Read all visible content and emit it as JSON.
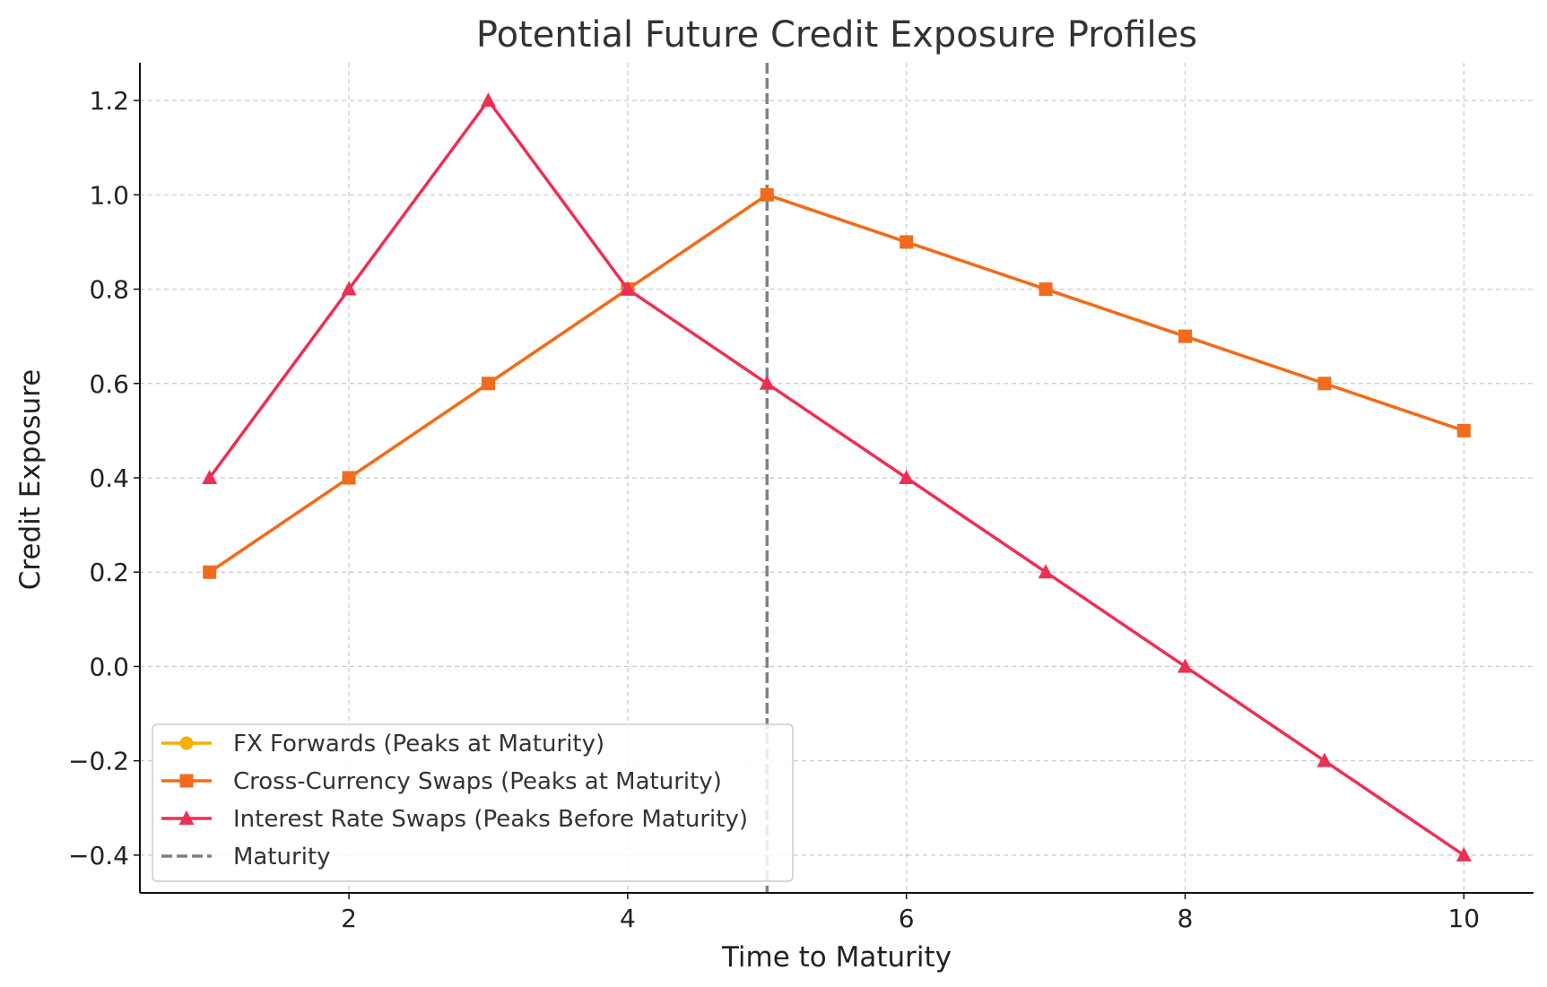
{
  "chart_data": {
    "type": "line",
    "title": "Potential Future Credit Exposure Profiles",
    "xlabel": "Time to Maturity",
    "ylabel": "Credit Exposure",
    "xlim": [
      0.5,
      10.5
    ],
    "ylim": [
      -0.48,
      1.28
    ],
    "xticks": [
      2,
      4,
      6,
      8,
      10
    ],
    "xtick_labels": [
      "2",
      "4",
      "6",
      "8",
      "10"
    ],
    "yticks": [
      -0.4,
      -0.2,
      0.0,
      0.2,
      0.4,
      0.6,
      0.8,
      1.0,
      1.2
    ],
    "ytick_labels": [
      "−0.4",
      "−0.2",
      "0.0",
      "0.2",
      "0.4",
      "0.6",
      "0.8",
      "1.0",
      "1.2"
    ],
    "grid": true,
    "legend_position": "bottom-left",
    "x": [
      1,
      2,
      3,
      4,
      5,
      6,
      7,
      8,
      9,
      10
    ],
    "series": [
      {
        "name": "FX Forwards (Peaks at Maturity)",
        "marker": "circle",
        "color": "#f5b000",
        "values": [
          0.2,
          0.4,
          0.6,
          0.8,
          1.0,
          0.9,
          0.8,
          0.7,
          0.6,
          0.5
        ]
      },
      {
        "name": "Cross-Currency Swaps (Peaks at Maturity)",
        "marker": "square",
        "color": "#f26b1d",
        "values": [
          0.2,
          0.4,
          0.6,
          0.8,
          1.0,
          0.9,
          0.8,
          0.7,
          0.6,
          0.5
        ]
      },
      {
        "name": "Interest Rate Swaps (Peaks Before Maturity)",
        "marker": "triangle",
        "color": "#ee2f55",
        "values": [
          0.4,
          0.8,
          1.2,
          0.8,
          0.6,
          0.4,
          0.2,
          0.0,
          -0.2,
          -0.4
        ]
      }
    ],
    "reference_lines": [
      {
        "name": "Maturity",
        "orientation": "vertical",
        "x": 5,
        "style": "dashed",
        "color": "#808080"
      }
    ]
  }
}
